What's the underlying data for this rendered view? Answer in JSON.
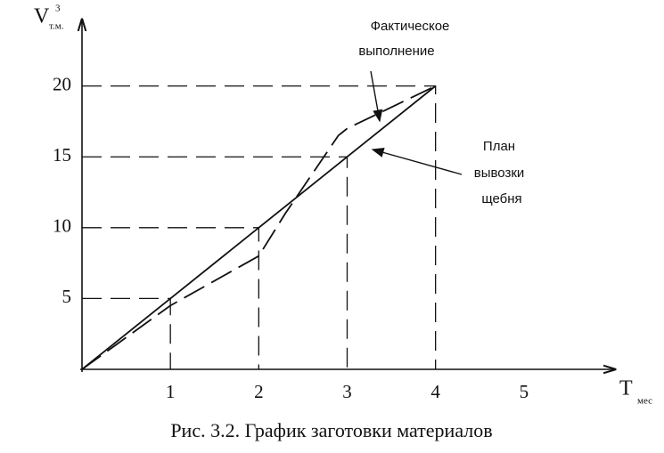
{
  "chart_data": {
    "type": "line",
    "caption": "Рис. 3.2. График заготовки материалов",
    "y_label": {
      "text": "V",
      "sub": "т.м.",
      "sup": "3"
    },
    "x_label": {
      "text": "T",
      "sub": "мес"
    },
    "annotations": [
      {
        "lines": [
          "Фактическое",
          "выполнение"
        ]
      },
      {
        "lines": [
          "План",
          "вывозки",
          "щебня"
        ]
      }
    ],
    "x": [
      0,
      1,
      2,
      2.3,
      2.9,
      3,
      4
    ],
    "series": [
      {
        "name": "План",
        "color": "#111111",
        "dashed": false,
        "values": [
          0,
          5,
          10,
          11.5,
          14.5,
          15,
          20
        ]
      },
      {
        "name": "Факт",
        "color": "#111111",
        "dashed": true,
        "values": [
          0,
          4.5,
          8,
          11,
          16.5,
          17,
          20
        ]
      }
    ],
    "xlim": [
      0,
      6
    ],
    "ylim": [
      0,
      24.5
    ],
    "xticks": [
      1,
      2,
      3,
      4,
      5
    ],
    "yticks": [
      5,
      10,
      15,
      20
    ],
    "grid": false
  }
}
